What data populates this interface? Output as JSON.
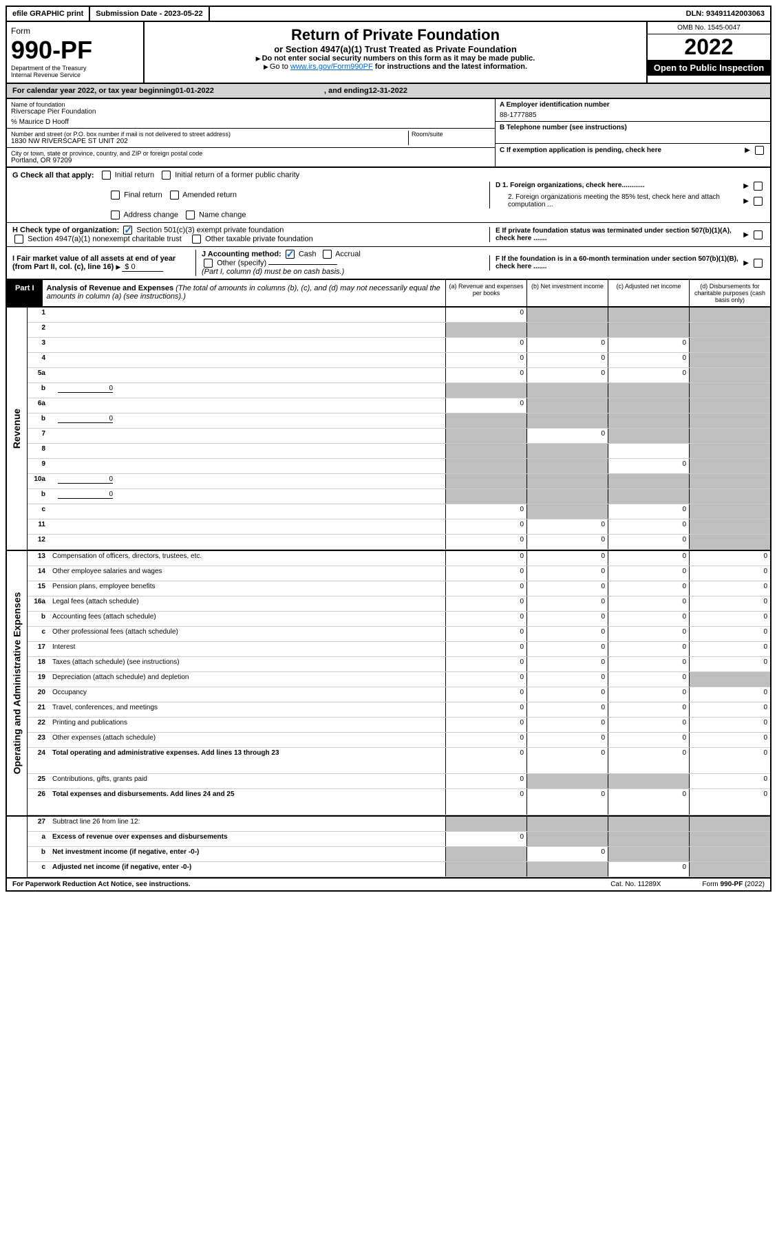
{
  "topbar": {
    "efile": "efile GRAPHIC print",
    "submission_label": "Submission Date - 2023-05-22",
    "dln": "DLN: 93491142003063"
  },
  "header": {
    "form_label": "Form",
    "form_num": "990-PF",
    "dept": "Department of the Treasury",
    "irs": "Internal Revenue Service",
    "title": "Return of Private Foundation",
    "subtitle": "or Section 4947(a)(1) Trust Treated as Private Foundation",
    "instr1": "Do not enter social security numbers on this form as it may be made public.",
    "instr2_pre": "Go to ",
    "instr2_link": "www.irs.gov/Form990PF",
    "instr2_post": " for instructions and the latest information.",
    "omb": "OMB No. 1545-0047",
    "year": "2022",
    "inspection": "Open to Public Inspection"
  },
  "calyear": {
    "pre": "For calendar year 2022, or tax year beginning ",
    "begin": "01-01-2022",
    "mid": ", and ending ",
    "end": "12-31-2022"
  },
  "info": {
    "name_label": "Name of foundation",
    "name": "Riverscape Pier Foundation",
    "care_of": "% Maurice D Hooff",
    "street_label": "Number and street (or P.O. box number if mail is not delivered to street address)",
    "street": "1830 NW RIVERSCAPE ST UNIT 202",
    "room_label": "Room/suite",
    "city_label": "City or town, state or province, country, and ZIP or foreign postal code",
    "city": "Portland, OR  97209",
    "a_label": "A Employer identification number",
    "ein": "88-1777885",
    "b_label": "B Telephone number (see instructions)",
    "c_label": "C If exemption application is pending, check here",
    "d1": "D 1. Foreign organizations, check here............",
    "d2": "2. Foreign organizations meeting the 85% test, check here and attach computation ...",
    "e_label": "E  If private foundation status was terminated under section 507(b)(1)(A), check here .......",
    "f_label": "F  If the foundation is in a 60-month termination under section 507(b)(1)(B), check here .......",
    "g_label": "G Check all that apply:",
    "g_opts": [
      "Initial return",
      "Initial return of a former public charity",
      "Final return",
      "Amended return",
      "Address change",
      "Name change"
    ],
    "h_label": "H Check type of organization:",
    "h_opts": [
      "Section 501(c)(3) exempt private foundation",
      "Section 4947(a)(1) nonexempt charitable trust",
      "Other taxable private foundation"
    ],
    "i_label": "I Fair market value of all assets at end of year (from Part II, col. (c), line 16)",
    "i_val": "$  0",
    "j_label": "J Accounting method:",
    "j_opts": [
      "Cash",
      "Accrual"
    ],
    "j_other": "Other (specify)",
    "j_note": "(Part I, column (d) must be on cash basis.)"
  },
  "part1": {
    "tab": "Part I",
    "title": "Analysis of Revenue and Expenses",
    "title_note": " (The total of amounts in columns (b), (c), and (d) may not necessarily equal the amounts in column (a) (see instructions).)",
    "cols": [
      "(a)  Revenue and expenses per books",
      "(b)  Net investment income",
      "(c)  Adjusted net income",
      "(d)  Disbursements for charitable purposes (cash basis only)"
    ]
  },
  "side_labels": {
    "rev": "Revenue",
    "exp": "Operating and Administrative Expenses"
  },
  "rows": [
    {
      "n": "1",
      "d": "",
      "a": "0",
      "b": "",
      "c": "",
      "sb": true,
      "sc": true,
      "sd": true
    },
    {
      "n": "2",
      "d": "",
      "a": "",
      "b": "",
      "c": "",
      "sa": true,
      "sb": true,
      "sc": true,
      "sd": true,
      "bold_not": true
    },
    {
      "n": "3",
      "d": "",
      "a": "0",
      "b": "0",
      "c": "0",
      "sd": true
    },
    {
      "n": "4",
      "d": "",
      "a": "0",
      "b": "0",
      "c": "0",
      "sd": true
    },
    {
      "n": "5a",
      "d": "",
      "a": "0",
      "b": "0",
      "c": "0",
      "sd": true
    },
    {
      "n": "b",
      "d": "",
      "inline": "0",
      "a": "",
      "b": "",
      "c": "",
      "sa": true,
      "sb": true,
      "sc": true,
      "sd": true
    },
    {
      "n": "6a",
      "d": "",
      "a": "0",
      "b": "",
      "c": "",
      "sb": true,
      "sc": true,
      "sd": true
    },
    {
      "n": "b",
      "d": "",
      "inline": "0",
      "a": "",
      "b": "",
      "c": "",
      "sa": true,
      "sb": true,
      "sc": true,
      "sd": true
    },
    {
      "n": "7",
      "d": "",
      "a": "",
      "b": "0",
      "c": "",
      "sa": true,
      "sc": true,
      "sd": true
    },
    {
      "n": "8",
      "d": "",
      "a": "",
      "b": "",
      "c": "",
      "sa": true,
      "sb": true,
      "sd": true
    },
    {
      "n": "9",
      "d": "",
      "a": "",
      "b": "",
      "c": "0",
      "sa": true,
      "sb": true,
      "sd": true
    },
    {
      "n": "10a",
      "d": "",
      "inline": "0",
      "a": "",
      "b": "",
      "c": "",
      "sa": true,
      "sb": true,
      "sc": true,
      "sd": true
    },
    {
      "n": "b",
      "d": "",
      "inline": "0",
      "a": "",
      "b": "",
      "c": "",
      "sa": true,
      "sb": true,
      "sc": true,
      "sd": true
    },
    {
      "n": "c",
      "d": "",
      "a": "0",
      "b": "",
      "c": "0",
      "sb": true,
      "sd": true
    },
    {
      "n": "11",
      "d": "",
      "a": "0",
      "b": "0",
      "c": "0",
      "sd": true
    },
    {
      "n": "12",
      "d": "",
      "a": "0",
      "b": "0",
      "c": "0",
      "sd": true,
      "bold": true
    }
  ],
  "exp_rows": [
    {
      "n": "13",
      "d": "Compensation of officers, directors, trustees, etc.",
      "a": "0",
      "b": "0",
      "c": "0",
      "dd": "0"
    },
    {
      "n": "14",
      "d": "Other employee salaries and wages",
      "a": "0",
      "b": "0",
      "c": "0",
      "dd": "0"
    },
    {
      "n": "15",
      "d": "Pension plans, employee benefits",
      "a": "0",
      "b": "0",
      "c": "0",
      "dd": "0"
    },
    {
      "n": "16a",
      "d": "Legal fees (attach schedule)",
      "a": "0",
      "b": "0",
      "c": "0",
      "dd": "0"
    },
    {
      "n": "b",
      "d": "Accounting fees (attach schedule)",
      "a": "0",
      "b": "0",
      "c": "0",
      "dd": "0"
    },
    {
      "n": "c",
      "d": "Other professional fees (attach schedule)",
      "a": "0",
      "b": "0",
      "c": "0",
      "dd": "0"
    },
    {
      "n": "17",
      "d": "Interest",
      "a": "0",
      "b": "0",
      "c": "0",
      "dd": "0"
    },
    {
      "n": "18",
      "d": "Taxes (attach schedule) (see instructions)",
      "a": "0",
      "b": "0",
      "c": "0",
      "dd": "0"
    },
    {
      "n": "19",
      "d": "Depreciation (attach schedule) and depletion",
      "a": "0",
      "b": "0",
      "c": "0",
      "dd": "",
      "sd": true
    },
    {
      "n": "20",
      "d": "Occupancy",
      "a": "0",
      "b": "0",
      "c": "0",
      "dd": "0"
    },
    {
      "n": "21",
      "d": "Travel, conferences, and meetings",
      "a": "0",
      "b": "0",
      "c": "0",
      "dd": "0"
    },
    {
      "n": "22",
      "d": "Printing and publications",
      "a": "0",
      "b": "0",
      "c": "0",
      "dd": "0"
    },
    {
      "n": "23",
      "d": "Other expenses (attach schedule)",
      "a": "0",
      "b": "0",
      "c": "0",
      "dd": "0"
    },
    {
      "n": "24",
      "d": "Total operating and administrative expenses. Add lines 13 through 23",
      "a": "0",
      "b": "0",
      "c": "0",
      "dd": "0",
      "bold": true,
      "tall": true
    },
    {
      "n": "25",
      "d": "Contributions, gifts, grants paid",
      "a": "0",
      "b": "",
      "c": "",
      "dd": "0",
      "sb": true,
      "sc": true
    },
    {
      "n": "26",
      "d": "Total expenses and disbursements. Add lines 24 and 25",
      "a": "0",
      "b": "0",
      "c": "0",
      "dd": "0",
      "bold": true,
      "tall": true
    }
  ],
  "final_rows": [
    {
      "n": "27",
      "d": "Subtract line 26 from line 12:",
      "a": "",
      "b": "",
      "c": "",
      "dd": "",
      "sa": true,
      "sb": true,
      "sc": true,
      "sd": true
    },
    {
      "n": "a",
      "d": "Excess of revenue over expenses and disbursements",
      "a": "0",
      "b": "",
      "c": "",
      "dd": "",
      "sb": true,
      "sc": true,
      "sd": true,
      "bold": true
    },
    {
      "n": "b",
      "d": "Net investment income (if negative, enter -0-)",
      "a": "",
      "b": "0",
      "c": "",
      "dd": "",
      "sa": true,
      "sc": true,
      "sd": true,
      "bold": true
    },
    {
      "n": "c",
      "d": "Adjusted net income (if negative, enter -0-)",
      "a": "",
      "b": "",
      "c": "0",
      "dd": "",
      "sa": true,
      "sb": true,
      "sd": true,
      "bold": true
    }
  ],
  "footer": {
    "left": "For Paperwork Reduction Act Notice, see instructions.",
    "mid": "Cat. No. 11289X",
    "right": "Form 990-PF (2022)"
  },
  "colors": {
    "shade": "#bfbfbf",
    "link": "#0066cc",
    "header_shade": "#d4d4d4"
  }
}
